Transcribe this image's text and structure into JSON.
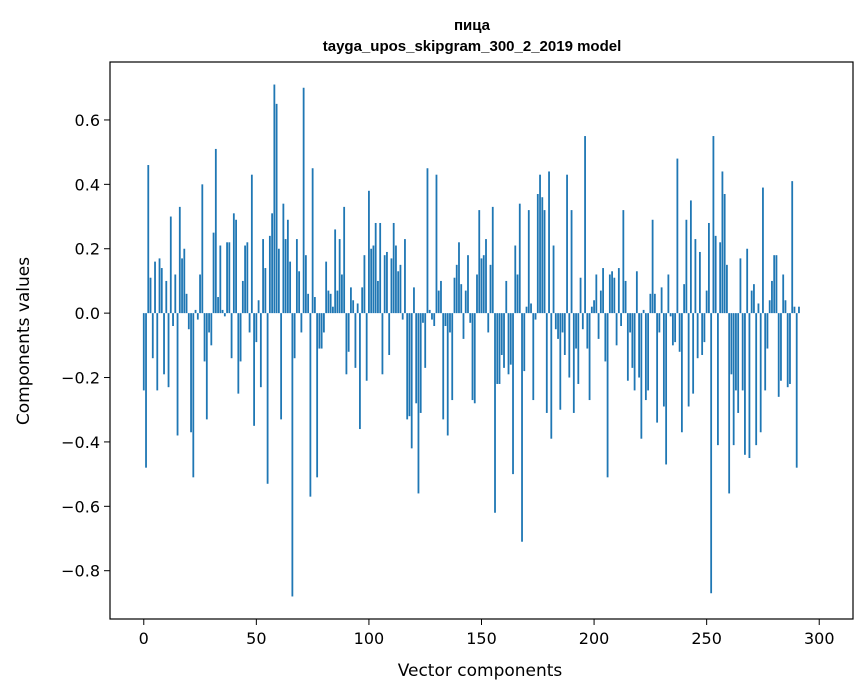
{
  "chart_data": {
    "type": "bar",
    "title_line1": "пица",
    "title_line2": "tayga_upos_skipgram_300_2_2019 model",
    "xlabel": "Vector components",
    "ylabel": "Components values",
    "xlim": [
      -15,
      315
    ],
    "ylim": [
      -0.95,
      0.78
    ],
    "xticks": [
      0,
      50,
      100,
      150,
      200,
      250,
      300
    ],
    "yticks": [
      -0.8,
      -0.6,
      -0.4,
      -0.2,
      0.0,
      0.2,
      0.4,
      0.6
    ],
    "ytick_labels": [
      "−0.8",
      "−0.6",
      "−0.4",
      "−0.2",
      "0.0",
      "0.2",
      "0.4",
      "0.6"
    ],
    "bar_color": "#1f77b4",
    "values": [
      -0.24,
      -0.48,
      0.46,
      0.11,
      -0.14,
      0.16,
      -0.24,
      0.17,
      0.14,
      -0.19,
      0.1,
      -0.23,
      0.3,
      -0.04,
      0.12,
      -0.38,
      0.33,
      0.17,
      0.2,
      0.06,
      -0.05,
      -0.37,
      -0.51,
      0.01,
      -0.02,
      0.12,
      0.4,
      -0.15,
      -0.33,
      -0.06,
      -0.1,
      0.25,
      0.51,
      0.05,
      0.21,
      0.01,
      -0.01,
      0.22,
      0.22,
      -0.14,
      0.31,
      0.29,
      -0.25,
      -0.15,
      0.1,
      0.21,
      0.22,
      -0.06,
      0.43,
      -0.35,
      -0.09,
      0.04,
      -0.23,
      0.23,
      0.14,
      -0.53,
      0.24,
      0.31,
      0.71,
      0.65,
      0.2,
      -0.33,
      0.34,
      0.23,
      0.29,
      0.16,
      -0.88,
      -0.14,
      0.23,
      0.13,
      -0.06,
      0.7,
      0.18,
      0.06,
      -0.57,
      0.45,
      0.05,
      -0.51,
      -0.11,
      -0.11,
      -0.06,
      0.16,
      0.07,
      0.06,
      0.02,
      0.26,
      0.07,
      0.23,
      0.12,
      0.33,
      -0.19,
      -0.12,
      0.08,
      0.04,
      -0.17,
      0.03,
      -0.36,
      0.08,
      0.18,
      -0.21,
      0.38,
      0.2,
      0.21,
      0.28,
      0.1,
      0.28,
      -0.19,
      0.18,
      0.19,
      -0.13,
      0.17,
      0.28,
      0.21,
      0.13,
      0.15,
      -0.02,
      0.23,
      -0.33,
      -0.32,
      -0.42,
      0.08,
      -0.28,
      -0.56,
      -0.31,
      -0.03,
      -0.17,
      0.45,
      0.01,
      -0.02,
      -0.04,
      0.43,
      0.07,
      0.1,
      -0.33,
      -0.04,
      -0.38,
      -0.06,
      -0.27,
      0.11,
      0.15,
      0.22,
      0.09,
      -0.08,
      0.07,
      0.18,
      -0.03,
      -0.27,
      -0.28,
      0.12,
      0.32,
      0.17,
      0.18,
      0.23,
      -0.06,
      0.15,
      0.33,
      -0.62,
      -0.22,
      -0.22,
      -0.13,
      -0.17,
      0.1,
      -0.19,
      -0.16,
      -0.5,
      0.21,
      0.12,
      0.34,
      -0.71,
      -0.18,
      0.02,
      0.32,
      0.03,
      -0.27,
      -0.02,
      0.37,
      0.43,
      0.36,
      0.32,
      -0.31,
      0.44,
      -0.39,
      0.21,
      -0.05,
      -0.08,
      -0.3,
      -0.06,
      -0.13,
      0.43,
      -0.2,
      0.32,
      -0.31,
      -0.11,
      -0.22,
      0.11,
      -0.05,
      0.55,
      -0.11,
      -0.27,
      0.02,
      0.04,
      0.12,
      -0.08,
      0.07,
      0.14,
      -0.15,
      -0.51,
      0.12,
      0.13,
      0.11,
      -0.1,
      0.14,
      -0.04,
      0.32,
      0.1,
      -0.21,
      -0.06,
      -0.17,
      -0.24,
      0.13,
      -0.2,
      -0.39,
      0.01,
      -0.27,
      -0.24,
      0.06,
      0.29,
      0.06,
      -0.34,
      -0.06,
      0.08,
      -0.29,
      -0.47,
      0.12,
      -0.01,
      -0.1,
      -0.09,
      0.48,
      -0.12,
      -0.37,
      0.09,
      0.29,
      -0.29,
      0.35,
      -0.25,
      0.23,
      -0.14,
      0.19,
      -0.13,
      -0.09,
      0.07,
      0.28,
      -0.87,
      0.55,
      0.24,
      -0.41,
      0.22,
      0.44,
      0.37,
      0.15,
      -0.56,
      -0.19,
      -0.41,
      -0.24,
      -0.31,
      0.17,
      -0.24,
      -0.44,
      0.2,
      -0.45,
      0.07,
      0.09,
      -0.41,
      0.03,
      -0.37,
      0.39,
      -0.24,
      -0.11,
      0.04,
      0.1,
      0.18,
      0.18,
      -0.26,
      -0.21,
      0.12,
      0.04,
      -0.23,
      -0.22,
      0.41,
      0.02,
      -0.48,
      0.02
    ]
  }
}
